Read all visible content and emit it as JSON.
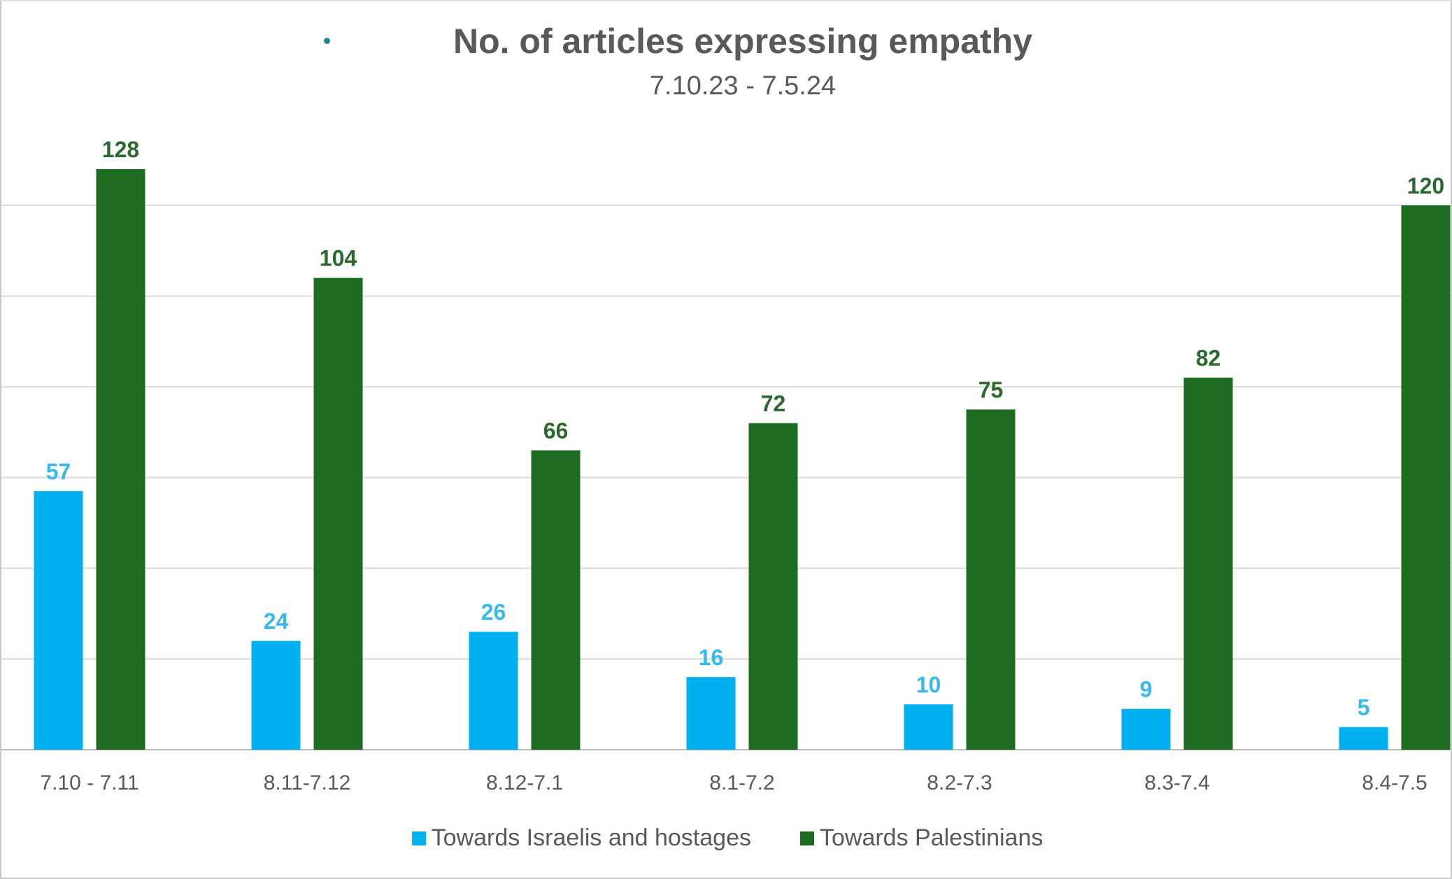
{
  "chart_data": {
    "type": "bar",
    "title": "No. of articles expressing empathy",
    "subtitle": "7.10.23 - 7.5.24",
    "xlabel": "",
    "ylabel": "",
    "ylim": [
      0,
      140
    ],
    "grid": true,
    "legend_position": "bottom",
    "categories": [
      "7.10 - 7.11",
      "8.11-7.12",
      "8.12-7.1",
      "8.1-7.2",
      "8.2-7.3",
      "8.3-7.4",
      "8.4-7.5"
    ],
    "series": [
      {
        "name": "Towards Israelis and hostages",
        "color": "#00b0f0",
        "values": [
          57,
          24,
          26,
          16,
          10,
          9,
          5
        ]
      },
      {
        "name": "Towards Palestinians",
        "color": "#1e6b22",
        "values": [
          128,
          104,
          66,
          72,
          75,
          82,
          120
        ]
      }
    ]
  }
}
